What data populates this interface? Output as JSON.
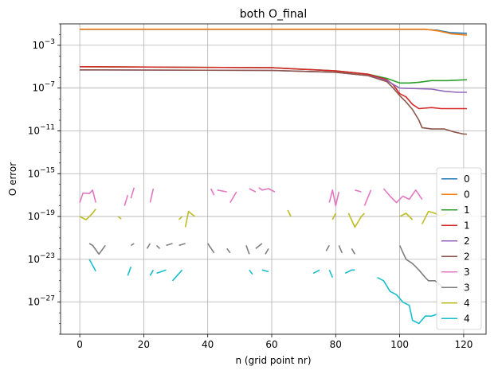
{
  "chart_data": {
    "type": "line",
    "title": "both O_final",
    "xlabel": "n (grid point nr)",
    "ylabel": "O error",
    "yscale": "log",
    "xlim": [
      -6,
      127
    ],
    "ylim": [
      1e-30,
      0.1
    ],
    "xticks": [
      0,
      20,
      40,
      60,
      80,
      100,
      120
    ],
    "xtick_labels": [
      "0",
      "20",
      "40",
      "60",
      "80",
      "100",
      "120"
    ],
    "yticks": [
      1e-27,
      1e-23,
      1e-19,
      1e-15,
      1e-11,
      1e-07,
      0.001
    ],
    "ytick_labels": [
      {
        "base": "10",
        "exp": "−27"
      },
      {
        "base": "10",
        "exp": "−23"
      },
      {
        "base": "10",
        "exp": "−19"
      },
      {
        "base": "10",
        "exp": "−15"
      },
      {
        "base": "10",
        "exp": "−11"
      },
      {
        "base": "10",
        "exp": "−7"
      },
      {
        "base": "10",
        "exp": "−3"
      }
    ],
    "grid": true,
    "legend_position": "lower right",
    "series": [
      {
        "name": "0",
        "color": "#1f77b4",
        "segments": [
          [
            [
              0,
              0.03
            ],
            [
              108,
              0.03
            ],
            [
              112,
              0.025
            ],
            [
              116,
              0.015
            ],
            [
              121,
              0.013
            ]
          ]
        ]
      },
      {
        "name": "0",
        "color": "#ff7f0e",
        "segments": [
          [
            [
              0,
              0.032
            ],
            [
              108,
              0.032
            ],
            [
              112,
              0.022
            ],
            [
              116,
              0.012
            ],
            [
              121,
              0.009
            ]
          ]
        ]
      },
      {
        "name": "1",
        "color": "#2ca02c",
        "segments": [
          [
            [
              0,
              1e-05
            ],
            [
              60,
              8e-06
            ],
            [
              80,
              4e-06
            ],
            [
              90,
              2e-06
            ],
            [
              96,
              8e-07
            ],
            [
              100,
              3e-07
            ],
            [
              103,
              3e-07
            ],
            [
              106,
              3.5e-07
            ],
            [
              110,
              5e-07
            ],
            [
              115,
              5e-07
            ],
            [
              121,
              6e-07
            ]
          ]
        ]
      },
      {
        "name": "1",
        "color": "#d62728",
        "segments": [
          [
            [
              0,
              1e-05
            ],
            [
              60,
              8e-06
            ],
            [
              80,
              4e-06
            ],
            [
              90,
              2e-06
            ],
            [
              96,
              6e-07
            ],
            [
              98,
              2e-07
            ],
            [
              100,
              3e-08
            ],
            [
              102,
              1.5e-08
            ],
            [
              104,
              3e-09
            ],
            [
              106,
              1.2e-09
            ],
            [
              110,
              1.5e-09
            ],
            [
              113,
              1.2e-09
            ],
            [
              118,
              1.2e-09
            ],
            [
              121,
              1.2e-09
            ]
          ]
        ]
      },
      {
        "name": "2",
        "color": "#9467bd",
        "segments": [
          [
            [
              0,
              5e-06
            ],
            [
              60,
              4.5e-06
            ],
            [
              80,
              3e-06
            ],
            [
              90,
              1.5e-06
            ],
            [
              96,
              5e-07
            ],
            [
              100,
              1e-07
            ],
            [
              105,
              9e-08
            ],
            [
              110,
              8e-08
            ],
            [
              114,
              5e-08
            ],
            [
              118,
              4e-08
            ],
            [
              121,
              4e-08
            ]
          ]
        ]
      },
      {
        "name": "2",
        "color": "#8c564b",
        "segments": [
          [
            [
              0,
              5e-06
            ],
            [
              60,
              4.5e-06
            ],
            [
              80,
              3e-06
            ],
            [
              90,
              1.5e-06
            ],
            [
              96,
              4e-07
            ],
            [
              98,
              1e-07
            ],
            [
              100,
              2e-08
            ],
            [
              102,
              5e-09
            ],
            [
              104,
              1e-09
            ],
            [
              106,
              1e-10
            ],
            [
              107,
              2e-11
            ],
            [
              110,
              1.5e-11
            ],
            [
              114,
              1.5e-11
            ],
            [
              117,
              8e-12
            ],
            [
              120,
              5e-12
            ],
            [
              121,
              5e-12
            ]
          ]
        ]
      },
      {
        "name": "3",
        "color": "#e377c2",
        "segments": [
          [
            [
              0,
              2e-18
            ],
            [
              1,
              1.5e-17
            ],
            [
              2,
              1.5e-17
            ],
            [
              3,
              1.4e-17
            ],
            [
              4,
              3e-17
            ],
            [
              5,
              2e-18
            ]
          ],
          [
            [
              14,
              1e-18
            ],
            [
              15,
              1e-17
            ]
          ],
          [
            [
              16,
              5e-18
            ],
            [
              17,
              5e-17
            ]
          ],
          [
            [
              22,
              2e-18
            ],
            [
              23,
              4e-17
            ]
          ],
          [
            [
              41,
              4e-17
            ],
            [
              42,
              1e-17
            ]
          ],
          [
            [
              43,
              3e-17
            ],
            [
              46,
              2e-17
            ]
          ],
          [
            [
              47,
              2e-18
            ],
            [
              49,
              2e-17
            ]
          ],
          [
            [
              53,
              4e-17
            ],
            [
              55,
              2e-17
            ]
          ],
          [
            [
              56,
              5e-17
            ],
            [
              57,
              3e-17
            ],
            [
              59,
              4e-17
            ],
            [
              61,
              2e-17
            ]
          ],
          [
            [
              78,
              2e-18
            ],
            [
              79,
              3e-17
            ],
            [
              80,
              1e-18
            ],
            [
              81,
              2e-17
            ]
          ],
          [
            [
              86,
              3e-17
            ],
            [
              88,
              2e-17
            ]
          ],
          [
            [
              89,
              1e-18
            ],
            [
              91,
              3e-17
            ]
          ],
          [
            [
              95,
              4e-17
            ],
            [
              97,
              8e-18
            ],
            [
              99,
              2e-18
            ],
            [
              101,
              8e-18
            ],
            [
              103,
              4e-18
            ],
            [
              105,
              3e-17
            ],
            [
              107,
              4e-18
            ]
          ]
        ]
      },
      {
        "name": "3",
        "color": "#7f7f7f",
        "segments": [
          [
            [
              3,
              3e-22
            ],
            [
              4,
              2e-22
            ],
            [
              6,
              3e-23
            ],
            [
              8,
              2e-22
            ]
          ],
          [
            [
              16,
              2e-22
            ],
            [
              17,
              3e-22
            ]
          ],
          [
            [
              21,
              1e-22
            ],
            [
              22,
              3e-22
            ]
          ],
          [
            [
              24,
              2e-22
            ],
            [
              25,
              1e-22
            ]
          ],
          [
            [
              27,
              2e-22
            ],
            [
              29,
              3e-22
            ]
          ],
          [
            [
              31,
              2e-22
            ],
            [
              33,
              3e-22
            ]
          ],
          [
            [
              40,
              3e-22
            ],
            [
              42,
              4e-23
            ]
          ],
          [
            [
              46,
              1e-22
            ],
            [
              47,
              4e-23
            ]
          ],
          [
            [
              52,
              2e-22
            ],
            [
              53,
              3e-23
            ]
          ],
          [
            [
              55,
              1e-22
            ],
            [
              57,
              3e-22
            ]
          ],
          [
            [
              58,
              3e-23
            ],
            [
              59,
              1e-22
            ]
          ],
          [
            [
              77,
              6e-23
            ],
            [
              78,
              2e-22
            ]
          ],
          [
            [
              81,
              2e-22
            ],
            [
              82,
              4e-23
            ]
          ],
          [
            [
              85,
              1e-22
            ],
            [
              86,
              3e-23
            ]
          ],
          [
            [
              100,
              2e-22
            ],
            [
              102,
              1e-23
            ],
            [
              104,
              4e-24
            ],
            [
              106,
              1e-24
            ],
            [
              108,
              2e-25
            ],
            [
              109,
              1e-25
            ],
            [
              111,
              1e-25
            ],
            [
              114,
              2e-26
            ]
          ]
        ]
      },
      {
        "name": "4",
        "color": "#bcbd22",
        "segments": [
          [
            [
              0,
              1e-19
            ],
            [
              2,
              5e-20
            ],
            [
              4,
              2e-19
            ],
            [
              5,
              5e-19
            ]
          ],
          [
            [
              12,
              1e-19
            ],
            [
              13,
              6e-20
            ]
          ],
          [
            [
              31,
              5e-20
            ],
            [
              32,
              1e-19
            ]
          ],
          [
            [
              33,
              1e-20
            ],
            [
              34,
              3e-19
            ],
            [
              36,
              1e-19
            ]
          ],
          [
            [
              65,
              4e-19
            ],
            [
              66,
              1e-19
            ]
          ],
          [
            [
              79,
              5e-20
            ],
            [
              80,
              2e-19
            ]
          ],
          [
            [
              84,
              2e-19
            ],
            [
              86,
              1e-20
            ],
            [
              88,
              1e-19
            ],
            [
              89,
              2e-19
            ]
          ],
          [
            [
              100,
              1e-19
            ],
            [
              102,
              2e-19
            ],
            [
              104,
              5e-20
            ]
          ],
          [
            [
              107,
              2e-20
            ],
            [
              109,
              3e-19
            ],
            [
              111,
              2e-19
            ],
            [
              113,
              1e-19
            ],
            [
              115,
              2e-19
            ]
          ]
        ]
      },
      {
        "name": "4",
        "color": "#17becf",
        "segments": [
          [
            [
              3,
              1e-23
            ],
            [
              5,
              8e-25
            ]
          ],
          [
            [
              15,
              3e-25
            ],
            [
              16,
              2e-24
            ]
          ],
          [
            [
              22,
              3e-25
            ],
            [
              23,
              1e-24
            ]
          ],
          [
            [
              24,
              5e-25
            ],
            [
              27,
              1e-24
            ]
          ],
          [
            [
              29,
              1e-25
            ],
            [
              32,
              1e-24
            ]
          ],
          [
            [
              53,
              1e-24
            ],
            [
              54,
              4e-25
            ]
          ],
          [
            [
              57,
              1e-24
            ],
            [
              59,
              7e-25
            ]
          ],
          [
            [
              73,
              5e-25
            ],
            [
              75,
              1e-24
            ]
          ],
          [
            [
              78,
              1e-24
            ],
            [
              79,
              2e-25
            ]
          ],
          [
            [
              83,
              5e-25
            ],
            [
              85,
              1e-24
            ],
            [
              86,
              1e-24
            ]
          ],
          [
            [
              93,
              2e-25
            ],
            [
              95,
              1e-25
            ],
            [
              97,
              1e-26
            ],
            [
              99,
              5e-27
            ],
            [
              101,
              1e-27
            ],
            [
              103,
              5e-28
            ],
            [
              104,
              2e-29
            ],
            [
              106,
              1e-29
            ],
            [
              108,
              5e-29
            ],
            [
              110,
              5e-29
            ],
            [
              112,
              8e-29
            ]
          ]
        ]
      }
    ]
  }
}
